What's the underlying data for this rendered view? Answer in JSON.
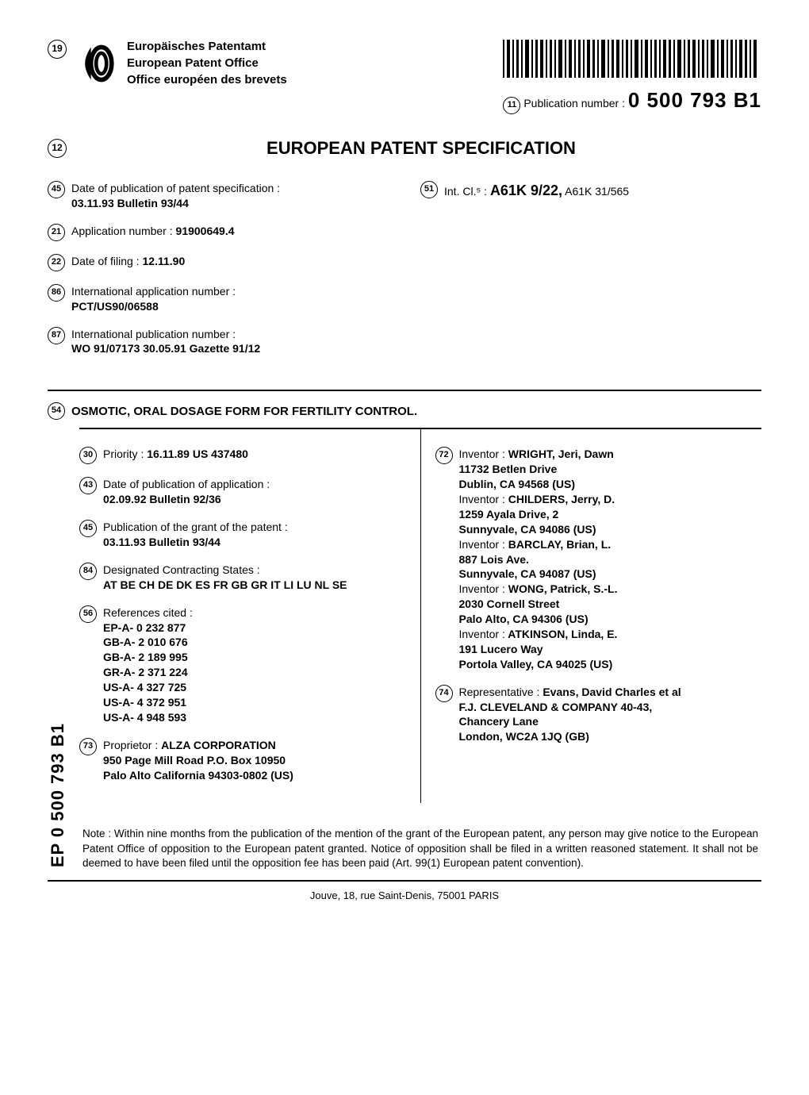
{
  "header": {
    "office_de": "Europäisches Patentamt",
    "office_en": "European Patent Office",
    "office_fr": "Office européen des brevets",
    "field_19": "19",
    "field_11": "11",
    "pub_label": "Publication number :",
    "pub_number": "0 500 793 B1"
  },
  "title_row": {
    "field_12": "12",
    "title": "EUROPEAN PATENT SPECIFICATION"
  },
  "top_left": {
    "f45": "45",
    "f45_text": "Date of publication of patent specification :",
    "f45_bold": "03.11.93 Bulletin 93/44",
    "f21": "21",
    "f21_text": "Application number :",
    "f21_bold": "91900649.4",
    "f22": "22",
    "f22_text": "Date of filing :",
    "f22_bold": "12.11.90",
    "f86": "86",
    "f86_text": "International application number :",
    "f86_bold": "PCT/US90/06588",
    "f87": "87",
    "f87_text": "International publication number :",
    "f87_bold": "WO 91/07173 30.05.91 Gazette 91/12"
  },
  "top_right": {
    "f51": "51",
    "f51_text": "Int. Cl.⁵ :",
    "f51_bold": "A61K 9/22,",
    "f51_rest": "A61K 31/565"
  },
  "invention": {
    "f54": "54",
    "title": "OSMOTIC, ORAL DOSAGE FORM FOR FERTILITY CONTROL."
  },
  "lower_left": {
    "f30": "30",
    "f30_text": "Priority :",
    "f30_bold": "16.11.89 US 437480",
    "f43": "43",
    "f43_text": "Date of publication of application :",
    "f43_bold": "02.09.92 Bulletin 92/36",
    "f45": "45",
    "f45_text": "Publication of the grant of the patent :",
    "f45_bold": "03.11.93 Bulletin 93/44",
    "f84": "84",
    "f84_text": "Designated Contracting States :",
    "f84_bold": "AT BE CH DE DK ES FR GB GR IT LI LU NL SE",
    "f56": "56",
    "f56_text": "References cited :",
    "refs": [
      "EP-A- 0 232 877",
      "GB-A- 2 010 676",
      "GB-A- 2 189 995",
      "GR-A- 2 371 224",
      "US-A- 4 327 725",
      "US-A- 4 372 951",
      "US-A- 4 948 593"
    ],
    "f73": "73",
    "f73_text": "Proprietor :",
    "f73_name": "ALZA CORPORATION",
    "f73_addr1": "950 Page Mill Road P.O. Box 10950",
    "f73_addr2": "Palo Alto California 94303-0802 (US)"
  },
  "lower_right": {
    "f72": "72",
    "f72_text": "Inventor :",
    "inventors": [
      {
        "name": "WRIGHT, Jeri, Dawn",
        "addr": [
          "11732 Betlen Drive",
          "Dublin, CA 94568 (US)"
        ]
      },
      {
        "name": "CHILDERS, Jerry, D.",
        "addr": [
          "1259 Ayala Drive, 2",
          "Sunnyvale, CA 94086 (US)"
        ]
      },
      {
        "name": "BARCLAY, Brian, L.",
        "addr": [
          "887 Lois Ave.",
          "Sunnyvale, CA 94087 (US)"
        ]
      },
      {
        "name": "WONG, Patrick, S.-L.",
        "addr": [
          "2030 Cornell Street",
          "Palo Alto, CA 94306 (US)"
        ]
      },
      {
        "name": "ATKINSON, Linda, E.",
        "addr": [
          "191 Lucero Way",
          "Portola Valley, CA 94025 (US)"
        ]
      }
    ],
    "f74": "74",
    "f74_text": "Representative :",
    "f74_name": "Evans, David Charles et al",
    "f74_addr": [
      "F.J. CLEVELAND & COMPANY 40-43,",
      "Chancery Lane",
      "London, WC2A 1JQ (GB)"
    ]
  },
  "spine": "EP 0 500 793 B1",
  "note": "Note : Within nine months from the publication of the mention of the grant of the European patent, any person may give notice to the European Patent Office of opposition to the European patent granted. Notice of opposition shall be filed in a written reasoned statement. It shall not be deemed to have been filed until the opposition fee has been paid (Art. 99(1) European patent convention).",
  "footer": "Jouve, 18, rue Saint-Denis, 75001 PARIS"
}
